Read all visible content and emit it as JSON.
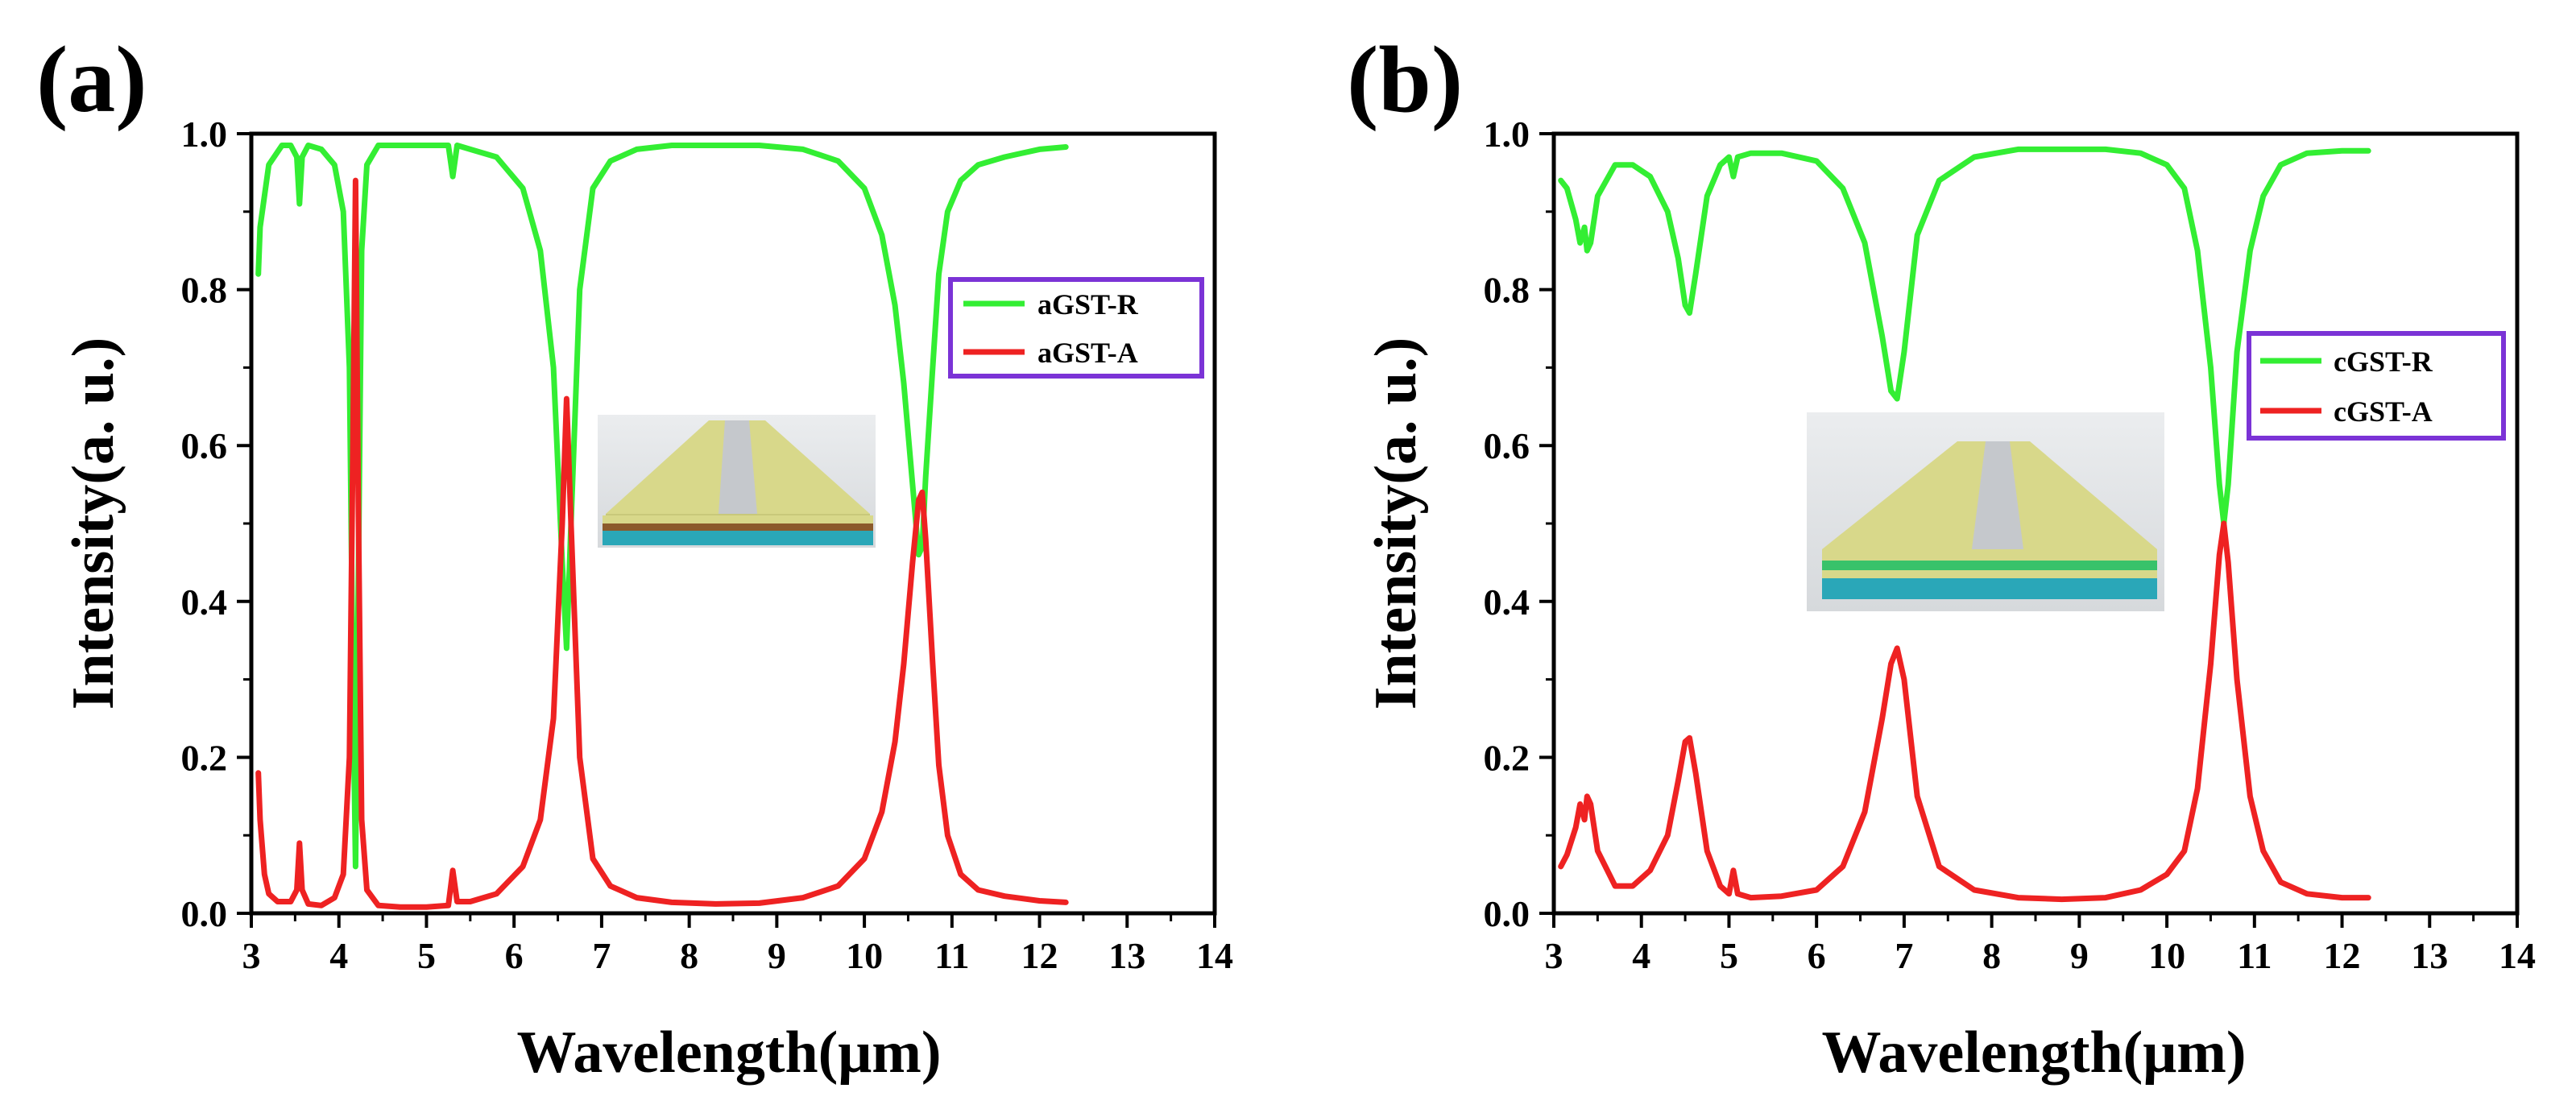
{
  "chart_data": [
    {
      "type": "line",
      "panel_label": "(a)",
      "xlabel": "Wavelength(μm)",
      "ylabel": "Intensity(a. u.)",
      "xlim": [
        3,
        14
      ],
      "ylim": [
        0,
        1
      ],
      "xticks": [
        "3",
        "4",
        "5",
        "6",
        "7",
        "8",
        "9",
        "10",
        "11",
        "12",
        "13",
        "14"
      ],
      "yticks": [
        "0.0",
        "0.2",
        "0.4",
        "0.6",
        "0.8",
        "1.0"
      ],
      "legend_position": "right-upper",
      "inset": "schematic of slot waveguide on amorphous GST stack",
      "series": [
        {
          "name": "aGST-R",
          "color": "#33ee33",
          "x": [
            3.08,
            3.1,
            3.2,
            3.35,
            3.45,
            3.52,
            3.55,
            3.58,
            3.65,
            3.8,
            3.95,
            4.05,
            4.12,
            4.16,
            4.19,
            4.22,
            4.26,
            4.32,
            4.45,
            4.7,
            5.0,
            5.25,
            5.3,
            5.35,
            5.5,
            5.8,
            6.1,
            6.3,
            6.45,
            6.55,
            6.6,
            6.65,
            6.75,
            6.9,
            7.1,
            7.4,
            7.8,
            8.3,
            8.8,
            9.3,
            9.7,
            10.0,
            10.2,
            10.35,
            10.45,
            10.55,
            10.62,
            10.66,
            10.7,
            10.78,
            10.85,
            10.95,
            11.1,
            11.3,
            11.6,
            12.0,
            12.3
          ],
          "y": [
            0.82,
            0.88,
            0.96,
            0.985,
            0.985,
            0.97,
            0.91,
            0.97,
            0.985,
            0.98,
            0.96,
            0.9,
            0.7,
            0.3,
            0.06,
            0.4,
            0.85,
            0.96,
            0.985,
            0.985,
            0.985,
            0.985,
            0.945,
            0.985,
            0.98,
            0.97,
            0.93,
            0.85,
            0.7,
            0.45,
            0.34,
            0.5,
            0.8,
            0.93,
            0.965,
            0.98,
            0.985,
            0.985,
            0.985,
            0.98,
            0.965,
            0.93,
            0.87,
            0.78,
            0.68,
            0.55,
            0.46,
            0.47,
            0.56,
            0.7,
            0.82,
            0.9,
            0.94,
            0.96,
            0.97,
            0.98,
            0.983
          ]
        },
        {
          "name": "aGST-A",
          "color": "#ee2222",
          "x": [
            3.08,
            3.1,
            3.15,
            3.2,
            3.3,
            3.45,
            3.52,
            3.55,
            3.58,
            3.65,
            3.8,
            3.95,
            4.05,
            4.12,
            4.16,
            4.19,
            4.22,
            4.26,
            4.32,
            4.45,
            4.7,
            5.0,
            5.25,
            5.3,
            5.35,
            5.5,
            5.8,
            6.1,
            6.3,
            6.45,
            6.55,
            6.6,
            6.65,
            6.75,
            6.9,
            7.1,
            7.4,
            7.8,
            8.3,
            8.8,
            9.3,
            9.7,
            10.0,
            10.2,
            10.35,
            10.45,
            10.55,
            10.62,
            10.66,
            10.7,
            10.78,
            10.85,
            10.95,
            11.1,
            11.3,
            11.6,
            12.0,
            12.3
          ],
          "y": [
            0.18,
            0.12,
            0.05,
            0.025,
            0.015,
            0.015,
            0.03,
            0.09,
            0.03,
            0.012,
            0.01,
            0.02,
            0.05,
            0.2,
            0.6,
            0.94,
            0.55,
            0.12,
            0.03,
            0.01,
            0.008,
            0.008,
            0.01,
            0.055,
            0.015,
            0.015,
            0.025,
            0.06,
            0.12,
            0.25,
            0.5,
            0.66,
            0.5,
            0.2,
            0.07,
            0.035,
            0.02,
            0.014,
            0.012,
            0.013,
            0.02,
            0.035,
            0.07,
            0.13,
            0.22,
            0.32,
            0.45,
            0.53,
            0.54,
            0.48,
            0.32,
            0.19,
            0.1,
            0.05,
            0.03,
            0.022,
            0.016,
            0.014
          ]
        }
      ]
    },
    {
      "type": "line",
      "panel_label": "(b)",
      "xlabel": "Wavelength(μm)",
      "ylabel": "Intensity(a. u.)",
      "xlim": [
        3,
        14
      ],
      "ylim": [
        0,
        1
      ],
      "xticks": [
        "3",
        "4",
        "5",
        "6",
        "7",
        "8",
        "9",
        "10",
        "11",
        "12",
        "13",
        "14"
      ],
      "yticks": [
        "0.0",
        "0.2",
        "0.4",
        "0.6",
        "0.8",
        "1.0"
      ],
      "legend_position": "right-middle",
      "inset": "schematic of slot waveguide on crystalline GST stack",
      "series": [
        {
          "name": "cGST-R",
          "color": "#33ee33",
          "x": [
            3.08,
            3.15,
            3.25,
            3.3,
            3.35,
            3.38,
            3.42,
            3.5,
            3.7,
            3.9,
            4.1,
            4.3,
            4.42,
            4.5,
            4.55,
            4.62,
            4.75,
            4.9,
            5.0,
            5.05,
            5.1,
            5.25,
            5.6,
            6.0,
            6.3,
            6.55,
            6.75,
            6.85,
            6.92,
            7.0,
            7.15,
            7.4,
            7.8,
            8.3,
            8.8,
            9.3,
            9.7,
            10.0,
            10.2,
            10.35,
            10.5,
            10.6,
            10.65,
            10.7,
            10.8,
            10.95,
            11.1,
            11.3,
            11.6,
            12.0,
            12.3
          ],
          "y": [
            0.94,
            0.93,
            0.89,
            0.86,
            0.88,
            0.85,
            0.86,
            0.92,
            0.96,
            0.96,
            0.945,
            0.9,
            0.84,
            0.78,
            0.77,
            0.82,
            0.92,
            0.96,
            0.97,
            0.945,
            0.97,
            0.975,
            0.975,
            0.965,
            0.93,
            0.86,
            0.74,
            0.67,
            0.66,
            0.72,
            0.87,
            0.94,
            0.97,
            0.98,
            0.98,
            0.98,
            0.975,
            0.96,
            0.93,
            0.85,
            0.7,
            0.55,
            0.5,
            0.55,
            0.72,
            0.85,
            0.92,
            0.96,
            0.975,
            0.978,
            0.978
          ]
        },
        {
          "name": "cGST-A",
          "color": "#ee2222",
          "x": [
            3.08,
            3.15,
            3.25,
            3.3,
            3.35,
            3.38,
            3.42,
            3.5,
            3.7,
            3.9,
            4.1,
            4.3,
            4.42,
            4.5,
            4.55,
            4.62,
            4.75,
            4.9,
            5.0,
            5.05,
            5.1,
            5.25,
            5.6,
            6.0,
            6.3,
            6.55,
            6.75,
            6.85,
            6.92,
            7.0,
            7.15,
            7.4,
            7.8,
            8.3,
            8.8,
            9.3,
            9.7,
            10.0,
            10.2,
            10.35,
            10.5,
            10.6,
            10.65,
            10.7,
            10.8,
            10.95,
            11.1,
            11.3,
            11.6,
            12.0,
            12.3
          ],
          "y": [
            0.06,
            0.075,
            0.11,
            0.14,
            0.12,
            0.15,
            0.14,
            0.08,
            0.035,
            0.035,
            0.055,
            0.1,
            0.17,
            0.22,
            0.225,
            0.18,
            0.08,
            0.035,
            0.025,
            0.055,
            0.025,
            0.02,
            0.022,
            0.03,
            0.06,
            0.13,
            0.25,
            0.32,
            0.34,
            0.3,
            0.15,
            0.06,
            0.03,
            0.02,
            0.018,
            0.02,
            0.03,
            0.05,
            0.08,
            0.16,
            0.32,
            0.46,
            0.5,
            0.45,
            0.3,
            0.15,
            0.08,
            0.04,
            0.025,
            0.02,
            0.02
          ]
        }
      ]
    }
  ]
}
